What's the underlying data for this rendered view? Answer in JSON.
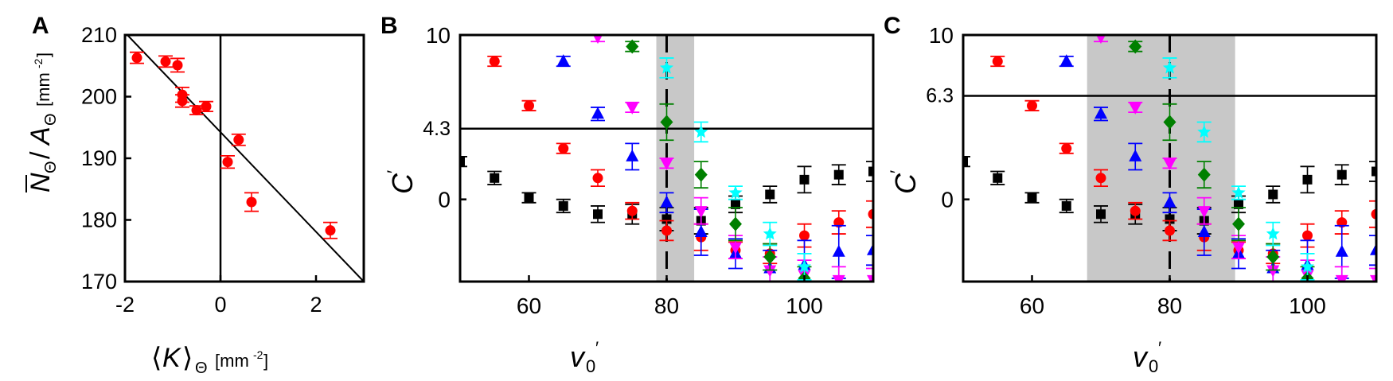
{
  "chart_data": [
    {
      "panel": "A",
      "type": "scatter",
      "xlabel": "⟨K⟩Θ [mm-2]",
      "ylabel": "N̄Θ/AΘ [mm-2]",
      "xlim": [
        -2,
        3
      ],
      "ylim": [
        170,
        210
      ],
      "xticks": [
        -2,
        0,
        2
      ],
      "yticks": [
        170,
        180,
        190,
        200,
        210
      ],
      "xtick_labels": [
        "-2",
        "0",
        "2"
      ],
      "ytick_labels": [
        "170",
        "180",
        "190",
        "200",
        "210"
      ],
      "series": [
        {
          "color": "#ff0000",
          "marker": "circle",
          "points": [
            {
              "x": -1.75,
              "y": 206.3,
              "err": 0.9
            },
            {
              "x": -1.15,
              "y": 205.7,
              "err": 0.9
            },
            {
              "x": -0.9,
              "y": 205.1,
              "err": 1.1
            },
            {
              "x": -0.8,
              "y": 200.3,
              "err": 1.2
            },
            {
              "x": -0.8,
              "y": 199.3,
              "err": 1.0
            },
            {
              "x": -0.5,
              "y": 197.8,
              "err": 0.7
            },
            {
              "x": -0.3,
              "y": 198.4,
              "err": 0.8
            },
            {
              "x": 0.15,
              "y": 189.4,
              "err": 1.0
            },
            {
              "x": 0.38,
              "y": 193.0,
              "err": 0.9
            },
            {
              "x": 0.65,
              "y": 182.9,
              "err": 1.5
            },
            {
              "x": 2.3,
              "y": 178.3,
              "err": 1.3
            }
          ]
        }
      ],
      "fit_line": {
        "x": [
          -1.95,
          3.0
        ],
        "y": [
          210.0,
          170.0
        ]
      },
      "vline_x": 0
    },
    {
      "panel": "B",
      "type": "scatter",
      "xlabel": "v0′",
      "ylabel": "C′",
      "xlim": [
        50,
        110
      ],
      "ylim": [
        -5,
        10
      ],
      "xticks": [
        60,
        80,
        100
      ],
      "xtick_labels": [
        "60",
        "80",
        "100"
      ],
      "ytick_labels": [
        "10",
        "0"
      ],
      "ytick_values": [
        10,
        0
      ],
      "hline": {
        "y": 4.3,
        "label": "4.3"
      },
      "vline_dashed_x": 80,
      "shade": [
        78.5,
        84
      ],
      "series": [
        {
          "color": "#000000",
          "marker": "square",
          "points": [
            {
              "x": 50,
              "y": 2.3,
              "err": 0.3
            },
            {
              "x": 55,
              "y": 1.3,
              "err": 0.4
            },
            {
              "x": 60,
              "y": 0.1,
              "err": 0.3
            },
            {
              "x": 65,
              "y": -0.4,
              "err": 0.4
            },
            {
              "x": 70,
              "y": -0.9,
              "err": 0.5
            },
            {
              "x": 75,
              "y": -0.9,
              "err": 0.6
            },
            {
              "x": 80,
              "y": -1.2,
              "err": 0.7
            },
            {
              "x": 85,
              "y": -1.3,
              "err": 0.8
            },
            {
              "x": 90,
              "y": -0.3,
              "err": 0.5
            },
            {
              "x": 95,
              "y": 0.3,
              "err": 0.5
            },
            {
              "x": 100,
              "y": 1.2,
              "err": 0.8
            },
            {
              "x": 105,
              "y": 1.5,
              "err": 0.6
            },
            {
              "x": 110,
              "y": 1.7,
              "err": 0.6
            }
          ]
        },
        {
          "color": "#ff0000",
          "marker": "circle",
          "points": [
            {
              "x": 55,
              "y": 8.4,
              "err": 0.3
            },
            {
              "x": 60,
              "y": 5.7,
              "err": 0.3
            },
            {
              "x": 65,
              "y": 3.1,
              "err": 0.3
            },
            {
              "x": 70,
              "y": 1.3,
              "err": 0.5
            },
            {
              "x": 75,
              "y": -0.7,
              "err": 0.5
            },
            {
              "x": 80,
              "y": -1.9,
              "err": 0.6
            },
            {
              "x": 85,
              "y": -2.3,
              "err": 0.8
            },
            {
              "x": 90,
              "y": -3.1,
              "err": 0.5
            },
            {
              "x": 95,
              "y": -3.3,
              "err": 0.6
            },
            {
              "x": 100,
              "y": -2.2,
              "err": 0.7
            },
            {
              "x": 105,
              "y": -1.4,
              "err": 0.7
            },
            {
              "x": 110,
              "y": -0.9,
              "err": 0.8
            }
          ]
        },
        {
          "color": "#0000ff",
          "marker": "triangle",
          "points": [
            {
              "x": 65,
              "y": 8.4,
              "err": 0.3
            },
            {
              "x": 70,
              "y": 5.2,
              "err": 0.4
            },
            {
              "x": 75,
              "y": 2.6,
              "err": 0.8
            },
            {
              "x": 80,
              "y": -0.2,
              "err": 0.6
            },
            {
              "x": 85,
              "y": -2.0,
              "err": 1.4
            },
            {
              "x": 90,
              "y": -3.3,
              "err": 0.9
            },
            {
              "x": 95,
              "y": -4.2,
              "err": 1.1
            },
            {
              "x": 100,
              "y": -4.0,
              "err": 1.5
            },
            {
              "x": 105,
              "y": -3.2,
              "err": 1.6
            },
            {
              "x": 110,
              "y": -3.1,
              "err": 0.9
            }
          ]
        },
        {
          "color": "#ff00ff",
          "marker": "triangle-down",
          "points": [
            {
              "x": 70,
              "y": 9.9,
              "err": 0.3
            },
            {
              "x": 75,
              "y": 5.6,
              "err": 0.3
            },
            {
              "x": 80,
              "y": 2.2,
              "err": 0.3
            },
            {
              "x": 85,
              "y": -0.7,
              "err": 0.8
            },
            {
              "x": 90,
              "y": -2.9,
              "err": 0.7
            },
            {
              "x": 95,
              "y": -4.3,
              "err": 0.8
            },
            {
              "x": 100,
              "y": -4.6,
              "err": 0.9
            },
            {
              "x": 105,
              "y": -4.9,
              "err": 0.8
            },
            {
              "x": 110,
              "y": -4.9,
              "err": 0.7
            }
          ]
        },
        {
          "color": "#008000",
          "marker": "diamond",
          "points": [
            {
              "x": 75,
              "y": 9.3,
              "err": 0.3
            },
            {
              "x": 80,
              "y": 4.7,
              "err": 1.1
            },
            {
              "x": 85,
              "y": 1.5,
              "err": 0.8
            },
            {
              "x": 90,
              "y": -1.5,
              "err": 1.0
            },
            {
              "x": 95,
              "y": -3.5,
              "err": 0.8
            },
            {
              "x": 100,
              "y": -4.8,
              "err": 0.7
            }
          ]
        },
        {
          "color": "#00ffff",
          "marker": "star",
          "points": [
            {
              "x": 80,
              "y": 8.0,
              "err": 0.6
            },
            {
              "x": 85,
              "y": 4.1,
              "err": 0.6
            },
            {
              "x": 90,
              "y": 0.4,
              "err": 0.4
            },
            {
              "x": 95,
              "y": -2.1,
              "err": 0.7
            },
            {
              "x": 100,
              "y": -4.1,
              "err": 0.8
            }
          ]
        }
      ]
    },
    {
      "panel": "C",
      "type": "scatter",
      "xlabel": "v0′",
      "ylabel": "C′",
      "xlim": [
        50,
        110
      ],
      "ylim": [
        -5,
        10
      ],
      "xticks": [
        60,
        80,
        100
      ],
      "xtick_labels": [
        "60",
        "80",
        "100"
      ],
      "ytick_labels": [
        "10",
        "0"
      ],
      "ytick_values": [
        10,
        0
      ],
      "hline": {
        "y": 6.3,
        "label": "6.3"
      },
      "vline_dashed_x": 80,
      "shade": [
        68,
        89.5
      ],
      "series": [
        {
          "color": "#000000",
          "marker": "square",
          "points": [
            {
              "x": 50,
              "y": 2.3,
              "err": 0.3
            },
            {
              "x": 55,
              "y": 1.3,
              "err": 0.4
            },
            {
              "x": 60,
              "y": 0.1,
              "err": 0.3
            },
            {
              "x": 65,
              "y": -0.4,
              "err": 0.4
            },
            {
              "x": 70,
              "y": -0.9,
              "err": 0.5
            },
            {
              "x": 75,
              "y": -0.9,
              "err": 0.6
            },
            {
              "x": 80,
              "y": -1.2,
              "err": 0.7
            },
            {
              "x": 85,
              "y": -1.3,
              "err": 0.8
            },
            {
              "x": 90,
              "y": -0.3,
              "err": 0.5
            },
            {
              "x": 95,
              "y": 0.3,
              "err": 0.5
            },
            {
              "x": 100,
              "y": 1.2,
              "err": 0.8
            },
            {
              "x": 105,
              "y": 1.5,
              "err": 0.6
            },
            {
              "x": 110,
              "y": 1.7,
              "err": 0.6
            }
          ]
        },
        {
          "color": "#ff0000",
          "marker": "circle",
          "points": [
            {
              "x": 55,
              "y": 8.4,
              "err": 0.3
            },
            {
              "x": 60,
              "y": 5.7,
              "err": 0.3
            },
            {
              "x": 65,
              "y": 3.1,
              "err": 0.3
            },
            {
              "x": 70,
              "y": 1.3,
              "err": 0.5
            },
            {
              "x": 75,
              "y": -0.7,
              "err": 0.5
            },
            {
              "x": 80,
              "y": -1.9,
              "err": 0.6
            },
            {
              "x": 85,
              "y": -2.3,
              "err": 0.8
            },
            {
              "x": 90,
              "y": -3.1,
              "err": 0.5
            },
            {
              "x": 95,
              "y": -3.3,
              "err": 0.6
            },
            {
              "x": 100,
              "y": -2.2,
              "err": 0.7
            },
            {
              "x": 105,
              "y": -1.4,
              "err": 0.7
            },
            {
              "x": 110,
              "y": -0.9,
              "err": 0.8
            }
          ]
        },
        {
          "color": "#0000ff",
          "marker": "triangle",
          "points": [
            {
              "x": 65,
              "y": 8.4,
              "err": 0.3
            },
            {
              "x": 70,
              "y": 5.2,
              "err": 0.4
            },
            {
              "x": 75,
              "y": 2.6,
              "err": 0.8
            },
            {
              "x": 80,
              "y": -0.2,
              "err": 0.6
            },
            {
              "x": 85,
              "y": -2.0,
              "err": 1.4
            },
            {
              "x": 90,
              "y": -3.3,
              "err": 0.9
            },
            {
              "x": 95,
              "y": -4.2,
              "err": 1.1
            },
            {
              "x": 100,
              "y": -4.0,
              "err": 1.5
            },
            {
              "x": 105,
              "y": -3.2,
              "err": 1.6
            },
            {
              "x": 110,
              "y": -3.1,
              "err": 0.9
            }
          ]
        },
        {
          "color": "#ff00ff",
          "marker": "triangle-down",
          "points": [
            {
              "x": 70,
              "y": 9.9,
              "err": 0.3
            },
            {
              "x": 75,
              "y": 5.6,
              "err": 0.3
            },
            {
              "x": 80,
              "y": 2.2,
              "err": 0.3
            },
            {
              "x": 85,
              "y": -0.7,
              "err": 0.8
            },
            {
              "x": 90,
              "y": -2.9,
              "err": 0.7
            },
            {
              "x": 95,
              "y": -4.3,
              "err": 0.8
            },
            {
              "x": 100,
              "y": -4.6,
              "err": 0.9
            },
            {
              "x": 105,
              "y": -4.9,
              "err": 0.8
            },
            {
              "x": 110,
              "y": -4.9,
              "err": 0.7
            }
          ]
        },
        {
          "color": "#008000",
          "marker": "diamond",
          "points": [
            {
              "x": 75,
              "y": 9.3,
              "err": 0.3
            },
            {
              "x": 80,
              "y": 4.7,
              "err": 1.1
            },
            {
              "x": 85,
              "y": 1.5,
              "err": 0.8
            },
            {
              "x": 90,
              "y": -1.5,
              "err": 1.0
            },
            {
              "x": 95,
              "y": -3.5,
              "err": 0.8
            },
            {
              "x": 100,
              "y": -4.8,
              "err": 0.7
            }
          ]
        },
        {
          "color": "#00ffff",
          "marker": "star",
          "points": [
            {
              "x": 80,
              "y": 8.0,
              "err": 0.6
            },
            {
              "x": 85,
              "y": 4.1,
              "err": 0.6
            },
            {
              "x": 90,
              "y": 0.4,
              "err": 0.4
            },
            {
              "x": 95,
              "y": -2.1,
              "err": 0.7
            },
            {
              "x": 100,
              "y": -4.1,
              "err": 0.8
            }
          ]
        }
      ]
    }
  ]
}
